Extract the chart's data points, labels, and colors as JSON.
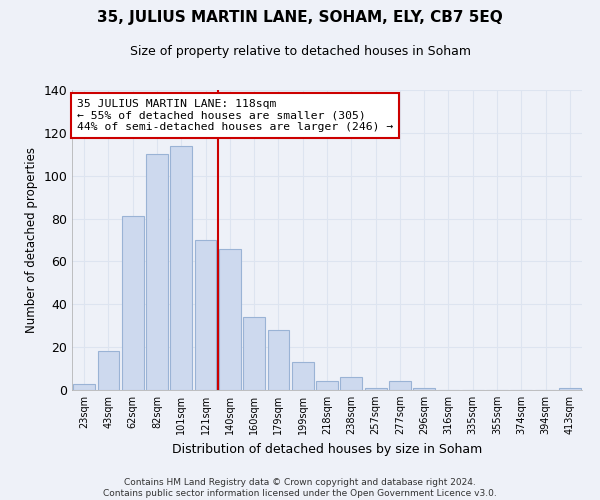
{
  "title": "35, JULIUS MARTIN LANE, SOHAM, ELY, CB7 5EQ",
  "subtitle": "Size of property relative to detached houses in Soham",
  "xlabel": "Distribution of detached houses by size in Soham",
  "ylabel": "Number of detached properties",
  "bar_labels": [
    "23sqm",
    "43sqm",
    "62sqm",
    "82sqm",
    "101sqm",
    "121sqm",
    "140sqm",
    "160sqm",
    "179sqm",
    "199sqm",
    "218sqm",
    "238sqm",
    "257sqm",
    "277sqm",
    "296sqm",
    "316sqm",
    "335sqm",
    "355sqm",
    "374sqm",
    "394sqm",
    "413sqm"
  ],
  "bar_values": [
    3,
    18,
    81,
    110,
    114,
    70,
    66,
    34,
    28,
    13,
    4,
    6,
    1,
    4,
    1,
    0,
    0,
    0,
    0,
    0,
    1
  ],
  "bar_color": "#cdd9ee",
  "bar_edge_color": "#9ab3d5",
  "vline_x": 5.5,
  "vline_color": "#cc0000",
  "ylim": [
    0,
    140
  ],
  "yticks": [
    0,
    20,
    40,
    60,
    80,
    100,
    120,
    140
  ],
  "annotation_title": "35 JULIUS MARTIN LANE: 118sqm",
  "annotation_line1": "← 55% of detached houses are smaller (305)",
  "annotation_line2": "44% of semi-detached houses are larger (246) →",
  "annotation_box_color": "#ffffff",
  "annotation_box_edge": "#cc0000",
  "footer_line1": "Contains HM Land Registry data © Crown copyright and database right 2024.",
  "footer_line2": "Contains public sector information licensed under the Open Government Licence v3.0.",
  "background_color": "#eef1f8",
  "grid_color": "#dde4f0"
}
